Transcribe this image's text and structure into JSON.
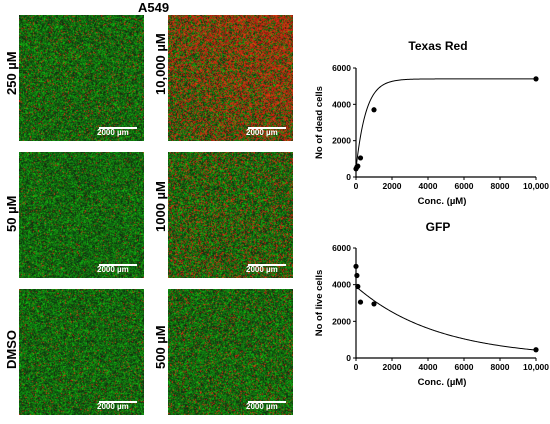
{
  "cell_line": "A549",
  "scale_bar_label": "2000 µm",
  "panels": [
    {
      "label": "250 µM",
      "red_fraction": 0.08
    },
    {
      "label": "10,000 µM",
      "red_fraction": 0.55
    },
    {
      "label": "50 µM",
      "red_fraction": 0.04
    },
    {
      "label": "1000 µM",
      "red_fraction": 0.22
    },
    {
      "label": "DMSO",
      "red_fraction": 0.05
    },
    {
      "label": "500 µM",
      "red_fraction": 0.1
    }
  ],
  "colors": {
    "green": "#3fae3a",
    "red": "#c0392b",
    "curve": "#000000"
  },
  "chart_data": [
    {
      "type": "scatter",
      "title": "Texas Red",
      "xlabel": "Conc. (µM)",
      "ylabel": "No of dead cells",
      "xlim": [
        0,
        10000
      ],
      "ylim": [
        0,
        6000
      ],
      "x_ticks": [
        "0",
        "2000",
        "4000",
        "6000",
        "8000",
        "10,000"
      ],
      "y_ticks": [
        "0",
        "2000",
        "4000",
        "6000"
      ],
      "points": [
        {
          "x": 0,
          "y": 450
        },
        {
          "x": 50,
          "y": 550
        },
        {
          "x": 100,
          "y": 600
        },
        {
          "x": 250,
          "y": 1050
        },
        {
          "x": 1000,
          "y": 3700
        },
        {
          "x": 10000,
          "y": 5400
        }
      ],
      "fit": "saturating",
      "fit_params": {
        "bottom": 450,
        "top": 5400,
        "k": 0.0018
      }
    },
    {
      "type": "scatter",
      "title": "GFP",
      "xlabel": "Conc. (µM)",
      "ylabel": "No of live cells",
      "xlim": [
        0,
        10000
      ],
      "ylim": [
        0,
        6000
      ],
      "x_ticks": [
        "0",
        "2000",
        "4000",
        "6000",
        "8000",
        "10,000"
      ],
      "y_ticks": [
        "0",
        "2000",
        "4000",
        "6000"
      ],
      "points": [
        {
          "x": 0,
          "y": 5000
        },
        {
          "x": 50,
          "y": 4500
        },
        {
          "x": 100,
          "y": 3900
        },
        {
          "x": 250,
          "y": 3050
        },
        {
          "x": 1000,
          "y": 2950
        },
        {
          "x": 10000,
          "y": 450
        }
      ],
      "fit": "decay",
      "fit_params": {
        "bottom": 0,
        "top": 3900,
        "k": 0.00022
      }
    }
  ]
}
